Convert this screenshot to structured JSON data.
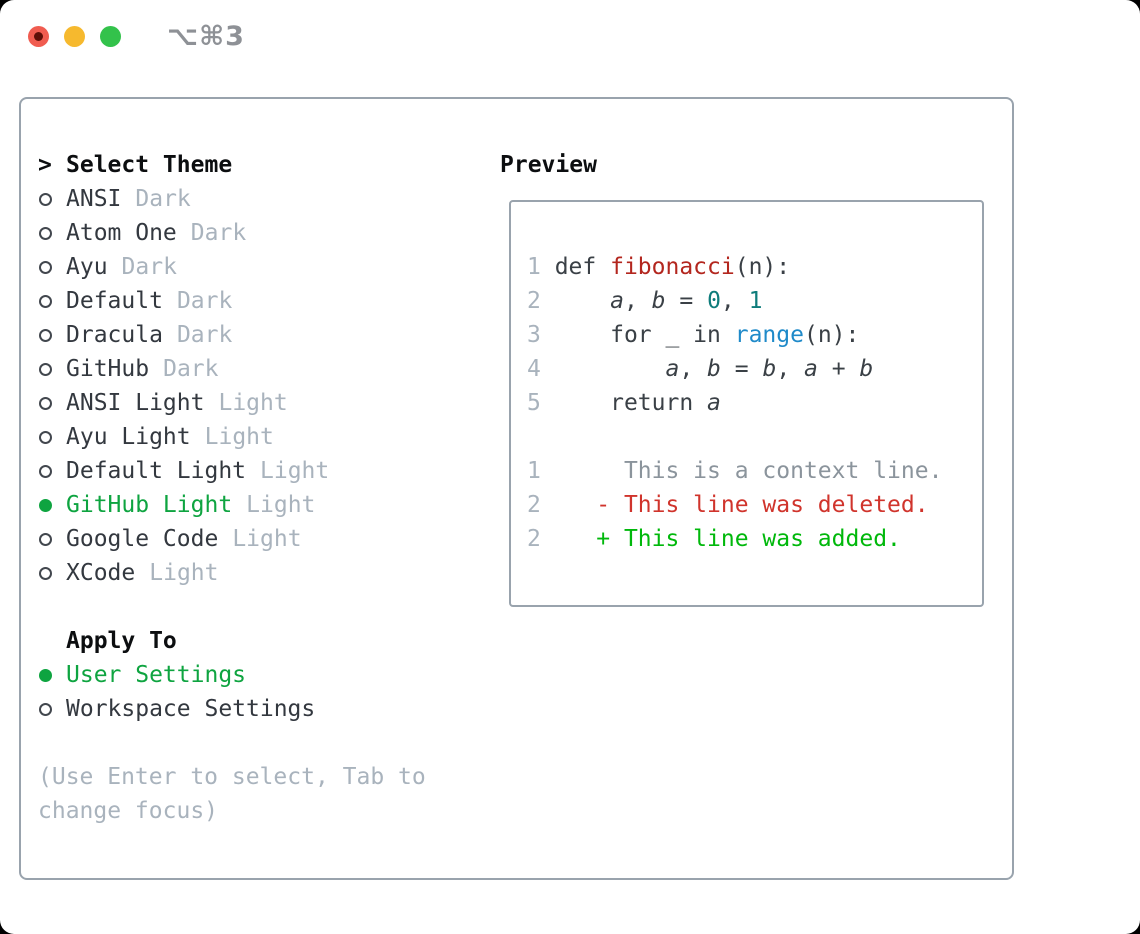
{
  "window": {
    "title": "⌥⌘3",
    "traffic_lights": [
      "close",
      "minimize",
      "zoom"
    ]
  },
  "left": {
    "prompt": ">",
    "select_title": "Select Theme",
    "themes": [
      {
        "name": "ANSI",
        "tag": "Dark",
        "selected": false
      },
      {
        "name": "Atom One",
        "tag": "Dark",
        "selected": false
      },
      {
        "name": "Ayu",
        "tag": "Dark",
        "selected": false
      },
      {
        "name": "Default",
        "tag": "Dark",
        "selected": false
      },
      {
        "name": "Dracula",
        "tag": "Dark",
        "selected": false
      },
      {
        "name": "GitHub",
        "tag": "Dark",
        "selected": false
      },
      {
        "name": "ANSI Light",
        "tag": "Light",
        "selected": false
      },
      {
        "name": "Ayu Light",
        "tag": "Light",
        "selected": false
      },
      {
        "name": "Default Light",
        "tag": "Light",
        "selected": false
      },
      {
        "name": "GitHub Light",
        "tag": "Light",
        "selected": true
      },
      {
        "name": "Google Code",
        "tag": "Light",
        "selected": false
      },
      {
        "name": "XCode",
        "tag": "Light",
        "selected": false
      }
    ],
    "apply_title": "Apply To",
    "apply_options": [
      {
        "name": "User Settings",
        "selected": true
      },
      {
        "name": "Workspace Settings",
        "selected": false
      }
    ],
    "hint_lines": [
      "(Use Enter to select, Tab to",
      "change focus)"
    ]
  },
  "preview": {
    "title": "Preview",
    "lines": [
      {
        "num": "1",
        "segs": [
          [
            "def ",
            "p"
          ],
          [
            "fibonacci",
            "fn"
          ],
          [
            "(n):",
            "p"
          ]
        ]
      },
      {
        "num": "2",
        "segs": [
          [
            "    ",
            "p"
          ],
          [
            "a",
            "v"
          ],
          [
            ", ",
            "p"
          ],
          [
            "b",
            "v"
          ],
          [
            " = ",
            "p"
          ],
          [
            "0",
            "lit"
          ],
          [
            ", ",
            "p"
          ],
          [
            "1",
            "lit"
          ]
        ]
      },
      {
        "num": "3",
        "segs": [
          [
            "    for _ in ",
            "p"
          ],
          [
            "range",
            "bi"
          ],
          [
            "(n):",
            "p"
          ]
        ]
      },
      {
        "num": "4",
        "segs": [
          [
            "        ",
            "p"
          ],
          [
            "a",
            "v"
          ],
          [
            ", ",
            "p"
          ],
          [
            "b",
            "v"
          ],
          [
            " = ",
            "p"
          ],
          [
            "b",
            "v"
          ],
          [
            ", ",
            "p"
          ],
          [
            "a",
            "v"
          ],
          [
            " + ",
            "p"
          ],
          [
            "b",
            "v"
          ]
        ]
      },
      {
        "num": "5",
        "segs": [
          [
            "    return ",
            "p"
          ],
          [
            "a",
            "v"
          ]
        ]
      },
      {
        "num": "",
        "segs": []
      },
      {
        "num": "1",
        "segs": [
          [
            "     This is a context line.",
            "ctx"
          ]
        ]
      },
      {
        "num": "2",
        "segs": [
          [
            "   - This line was deleted.",
            "del"
          ]
        ]
      },
      {
        "num": "2",
        "segs": [
          [
            "   + This line was added.",
            "add"
          ]
        ]
      }
    ]
  },
  "colors": {
    "accent_green": "#0ea440",
    "diff_added": "#00b80b",
    "diff_deleted": "#d0342c",
    "diff_context": "#8b949c",
    "code_plain": "#3a4046",
    "code_function": "#b3261e",
    "code_number_literal": "#0e7c7b",
    "code_builtin": "#1f8ac9",
    "line_number": "#a9b3bd",
    "tag_muted": "#a9b3bd",
    "text_dark": "#33383f",
    "header_black": "#0c0e10",
    "border": "#99a3ad",
    "traffic_red": "#f05c50",
    "traffic_yellow": "#f6b92e",
    "traffic_green": "#33c24b"
  }
}
